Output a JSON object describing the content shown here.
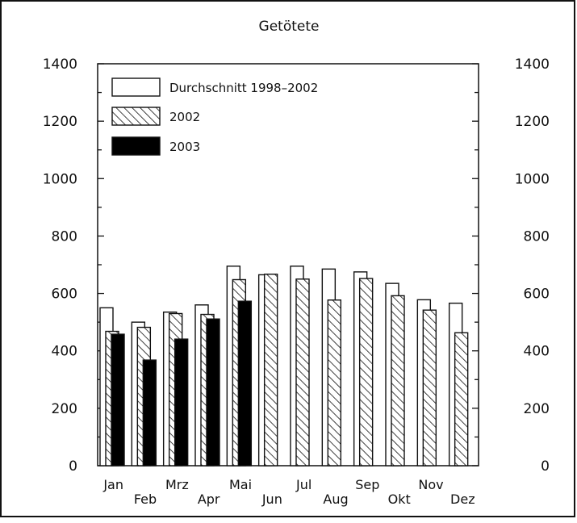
{
  "chart_data": {
    "type": "bar",
    "title": "Getötete",
    "xlabel": "",
    "ylabel": "",
    "ylim": [
      0,
      1400
    ],
    "yticks": [
      0,
      200,
      400,
      600,
      800,
      1000,
      1200,
      1400
    ],
    "secondary_y_axis": true,
    "legend_position": "top-left",
    "categories": [
      "Jan",
      "Feb",
      "Mrz",
      "Apr",
      "Mai",
      "Jun",
      "Jul",
      "Aug",
      "Sep",
      "Okt",
      "Nov",
      "Dez"
    ],
    "series": [
      {
        "name": "Durchschnitt 1998–2002",
        "fill": "none",
        "values": [
          550,
          500,
          535,
          560,
          695,
          665,
          695,
          685,
          675,
          635,
          578,
          566
        ]
      },
      {
        "name": "2002",
        "fill": "hatched",
        "values": [
          468,
          482,
          530,
          527,
          648,
          667,
          650,
          577,
          652,
          592,
          542,
          463
        ]
      },
      {
        "name": "2003",
        "fill": "solid-black",
        "values": [
          458,
          368,
          441,
          511,
          573,
          null,
          null,
          null,
          null,
          null,
          null,
          null
        ]
      }
    ]
  }
}
